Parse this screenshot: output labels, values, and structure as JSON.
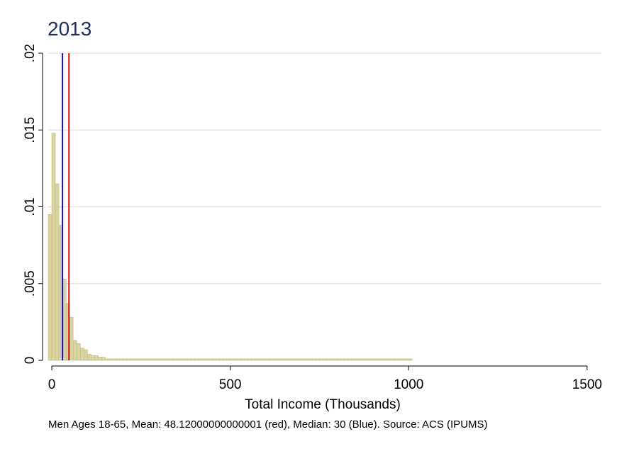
{
  "chart_data": {
    "type": "bar",
    "subtype": "histogram",
    "title": "2013",
    "xlabel": "Total Income (Thousands)",
    "ylabel": "",
    "note": "Men Ages 18-65, Mean: 48.12000000000001 (red), Median: 30 (Blue). Source: ACS (IPUMS)",
    "xlim": [
      -10,
      1540
    ],
    "ylim": [
      0,
      0.02
    ],
    "bin_width": 10,
    "first_bin_start": -10,
    "x_ticks": [
      {
        "value": 0,
        "label": "0"
      },
      {
        "value": 500,
        "label": "500"
      },
      {
        "value": 1000,
        "label": "1000"
      },
      {
        "value": 1500,
        "label": "1500"
      }
    ],
    "y_ticks": [
      {
        "value": 0,
        "label": "0"
      },
      {
        "value": 0.005,
        "label": ".005"
      },
      {
        "value": 0.01,
        "label": ".01"
      },
      {
        "value": 0.015,
        "label": ".015"
      },
      {
        "value": 0.02,
        "label": ".02"
      }
    ],
    "grid": true,
    "values": [
      0.0095,
      0.0148,
      0.0115,
      0.0088,
      0.0053,
      0.0037,
      0.0028,
      0.0013,
      0.0011,
      0.0008,
      0.0007,
      0.0004,
      0.0003,
      0.0003,
      0.0002,
      0.0002,
      0.0001,
      0.0001,
      0.0001,
      0.0001,
      0.0001,
      0.0001,
      0.0001,
      0.0001,
      0.0001,
      0.0001,
      0.0001,
      0.0001,
      0.0001,
      0.0001,
      0.0001,
      0.0001,
      0.0001,
      0.0001,
      0.0001,
      0.0001,
      0.0001,
      0.0001,
      0.0001,
      0.0001,
      0.0001,
      0.0001,
      0.0001,
      0.0001,
      0.0001,
      0.0001,
      0.0001,
      0.0001,
      0.0001,
      0.0001,
      0.0001,
      0.0001,
      0.0001,
      0.0001,
      0.0001,
      0.0001,
      0.0001,
      0.0001,
      0.0001,
      0.0001,
      0.0001,
      0.0001,
      0.0001,
      0.0001,
      0.0001,
      0.0001,
      0.0001,
      0.0001,
      0.0001,
      0.0001,
      0.0001,
      0.0001,
      0.0001,
      0.0001,
      0.0001,
      0.0001,
      0.0001,
      0.0001,
      0.0001,
      0.0001,
      0.0001,
      0.0001,
      0.0001,
      0.0001,
      0.0001,
      0.0001,
      0.0001,
      0.0001,
      0.0001,
      0.0001,
      0.0001,
      0.0001,
      0.0001,
      0.0001,
      0.0001,
      0.0001,
      0.0001,
      0.0001,
      0.0001,
      0.0001,
      0.0001,
      0.0001
    ],
    "reference_lines": [
      {
        "name": "Mean",
        "value": 48.12,
        "color": "#d01010"
      },
      {
        "name": "Median",
        "value": 30,
        "color": "#1010d0"
      }
    ],
    "colors": {
      "bar_fill": "#d8d3a0",
      "bar_stroke": "#c2bc80",
      "grid": "#e6e6e6",
      "title": "#1e2f5e"
    }
  }
}
